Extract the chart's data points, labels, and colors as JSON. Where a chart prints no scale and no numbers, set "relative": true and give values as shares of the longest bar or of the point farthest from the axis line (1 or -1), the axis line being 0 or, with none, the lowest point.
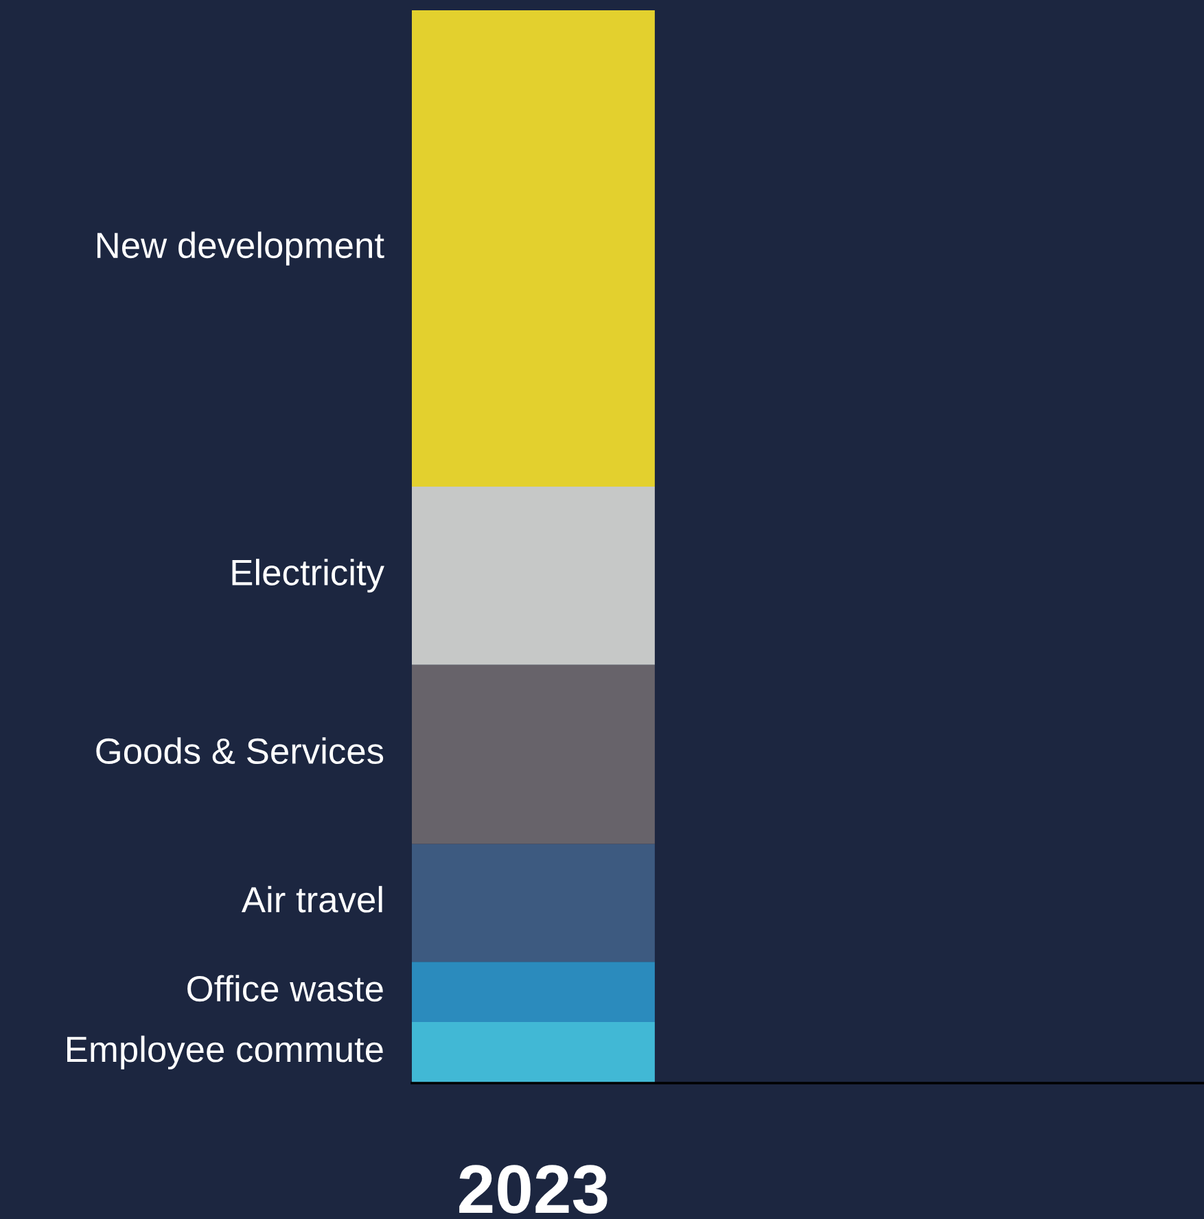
{
  "chart_data": {
    "type": "bar",
    "stacked": true,
    "relative": true,
    "categories": [
      "2023"
    ],
    "series": [
      {
        "name": "Employee commute",
        "color": "#41b8d5",
        "values": [
          0.057
        ]
      },
      {
        "name": "Office waste",
        "color": "#2b8bbd",
        "values": [
          0.056
        ]
      },
      {
        "name": "Air travel",
        "color": "#3d5a80",
        "values": [
          0.11
        ]
      },
      {
        "name": "Goods & Services",
        "color": "#67636a",
        "values": [
          0.167
        ]
      },
      {
        "name": "Electricity",
        "color": "#c6c8c7",
        "values": [
          0.166
        ]
      },
      {
        "name": "New development",
        "color": "#e3d02e",
        "values": [
          0.444
        ]
      }
    ]
  }
}
